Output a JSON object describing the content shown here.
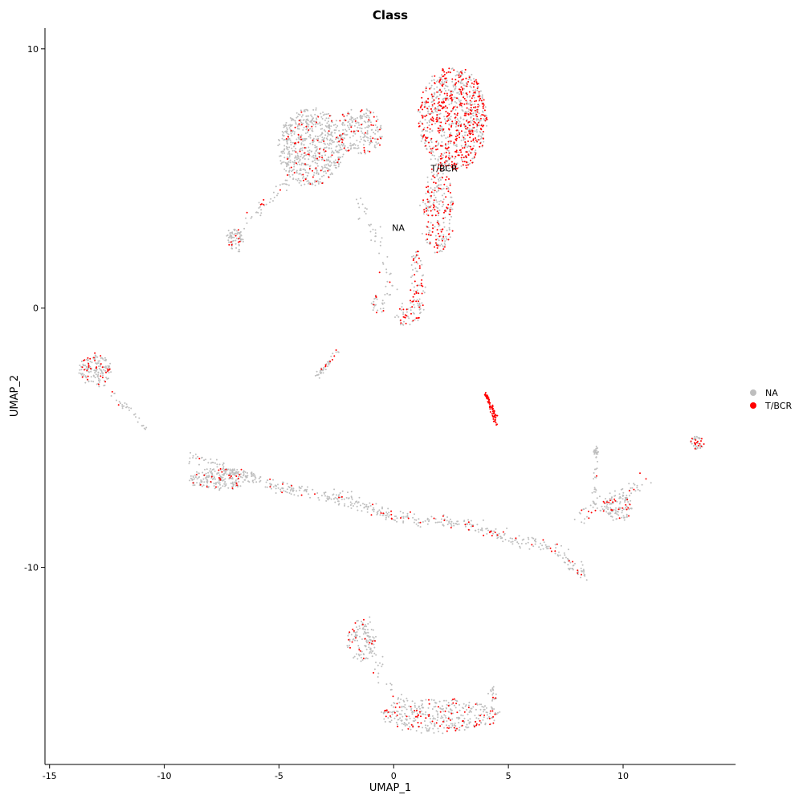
{
  "chart_data": {
    "type": "scatter",
    "title": "Class",
    "xlabel": "UMAP_1",
    "ylabel": "UMAP_2",
    "xlim": [
      -15.2,
      14.9
    ],
    "ylim": [
      -17.6,
      10.8
    ],
    "x_ticks": [
      -15,
      -10,
      -5,
      0,
      5,
      10
    ],
    "y_ticks": [
      -10,
      0,
      10
    ],
    "x_tick_labels": [
      "-15",
      "-10",
      "-5",
      "0",
      "5",
      "10"
    ],
    "y_tick_labels": [
      "-10",
      "0",
      "10"
    ],
    "grid": false,
    "legend_position": "right",
    "series": [
      {
        "name": "NA",
        "color": "#bebebe"
      },
      {
        "name": "T/BCR",
        "color": "#ff0000"
      }
    ],
    "cluster_labels": [
      {
        "text": "NA",
        "x": 0.2,
        "y": 3.1
      },
      {
        "text": "T/BCR",
        "x": 2.2,
        "y": 5.4
      }
    ],
    "clusters": [
      {
        "cx": 2.6,
        "cy": 7.3,
        "rx": 1.5,
        "ry": 2.0,
        "n": 900,
        "red": 0.42
      },
      {
        "cx": 1.9,
        "cy": 3.8,
        "rx": 0.7,
        "ry": 1.7,
        "n": 260,
        "red": 0.35
      },
      {
        "cx": 1.0,
        "cy": 0.8,
        "rx": 0.3,
        "ry": 1.4,
        "n": 90,
        "red": 0.3
      },
      {
        "cx": -3.6,
        "cy": 6.2,
        "rx": 1.4,
        "ry": 1.5,
        "n": 650,
        "red": 0.12
      },
      {
        "cx": -1.5,
        "cy": 6.8,
        "rx": 1.0,
        "ry": 0.9,
        "n": 220,
        "red": 0.12
      },
      {
        "cx": -6.9,
        "cy": 2.6,
        "rx": 0.35,
        "ry": 0.5,
        "n": 70,
        "red": 0.12
      },
      {
        "cx": -0.7,
        "cy": 0.2,
        "rx": 0.3,
        "ry": 0.35,
        "n": 25,
        "red": 0.2
      },
      {
        "cx": 0.5,
        "cy": -0.3,
        "rx": 0.4,
        "ry": 0.4,
        "n": 35,
        "red": 0.2
      },
      {
        "cx": -13.0,
        "cy": -2.4,
        "rx": 0.7,
        "ry": 0.6,
        "n": 160,
        "red": 0.18
      },
      {
        "cx": -7.6,
        "cy": -6.6,
        "rx": 1.3,
        "ry": 0.4,
        "n": 200,
        "red": 0.12
      },
      {
        "cx": 9.8,
        "cy": -7.7,
        "rx": 0.7,
        "ry": 0.5,
        "n": 110,
        "red": 0.15
      },
      {
        "cx": 8.8,
        "cy": -5.6,
        "rx": 0.1,
        "ry": 0.2,
        "n": 20,
        "red": 0.1
      },
      {
        "cx": 13.2,
        "cy": -5.2,
        "rx": 0.35,
        "ry": 0.25,
        "n": 45,
        "red": 0.2
      },
      {
        "cx": -1.4,
        "cy": -12.8,
        "rx": 0.6,
        "ry": 0.8,
        "n": 110,
        "red": 0.1
      },
      {
        "cx": 2.0,
        "cy": -15.7,
        "rx": 2.6,
        "ry": 0.65,
        "n": 380,
        "red": 0.16
      },
      {
        "cx": 4.3,
        "cy": -14.9,
        "rx": 0.2,
        "ry": 0.3,
        "n": 20,
        "red": 0.3
      }
    ],
    "paths": [
      {
        "pts": [
          [
            -8.9,
            -5.7
          ],
          [
            -5.0,
            -6.9
          ],
          [
            -2.0,
            -7.4
          ],
          [
            0.0,
            -8.1
          ],
          [
            3.0,
            -8.3
          ],
          [
            5.0,
            -8.8
          ],
          [
            7.0,
            -9.3
          ],
          [
            8.4,
            -10.4
          ]
        ],
        "n": 520,
        "spread": 0.12,
        "red": 0.1
      },
      {
        "pts": [
          [
            -4.6,
            4.9
          ],
          [
            -6.7,
            3.1
          ]
        ],
        "n": 40,
        "spread": 0.12,
        "red": 0.2
      },
      {
        "pts": [
          [
            -1.7,
            4.3
          ],
          [
            -0.6,
            2.4
          ],
          [
            -0.1,
            0.4
          ]
        ],
        "n": 45,
        "spread": 0.12,
        "red": 0.1
      },
      {
        "pts": [
          [
            -12.4,
            -3.2
          ],
          [
            -10.8,
            -4.6
          ]
        ],
        "n": 30,
        "spread": 0.08,
        "red": 0.1
      },
      {
        "pts": [
          [
            -3.3,
            -2.6
          ],
          [
            -2.4,
            -1.6
          ]
        ],
        "n": 40,
        "spread": 0.06,
        "red": 0.3
      },
      {
        "pts": [
          [
            8.0,
            -8.0
          ],
          [
            9.5,
            -7.4
          ],
          [
            11.0,
            -6.5
          ]
        ],
        "n": 60,
        "spread": 0.18,
        "red": 0.2
      },
      {
        "pts": [
          [
            8.8,
            -5.8
          ],
          [
            8.8,
            -7.8
          ]
        ],
        "n": 25,
        "spread": 0.06,
        "red": 0.1
      },
      {
        "pts": [
          [
            -1.3,
            -12.3
          ],
          [
            -0.7,
            -14.0
          ],
          [
            0.4,
            -15.3
          ]
        ],
        "n": 50,
        "spread": 0.15,
        "red": 0.1
      }
    ],
    "red_streak": {
      "pts": [
        [
          4.0,
          -3.3
        ],
        [
          4.3,
          -3.9
        ],
        [
          4.5,
          -4.5
        ]
      ],
      "n": 70,
      "spread": 0.05
    }
  }
}
